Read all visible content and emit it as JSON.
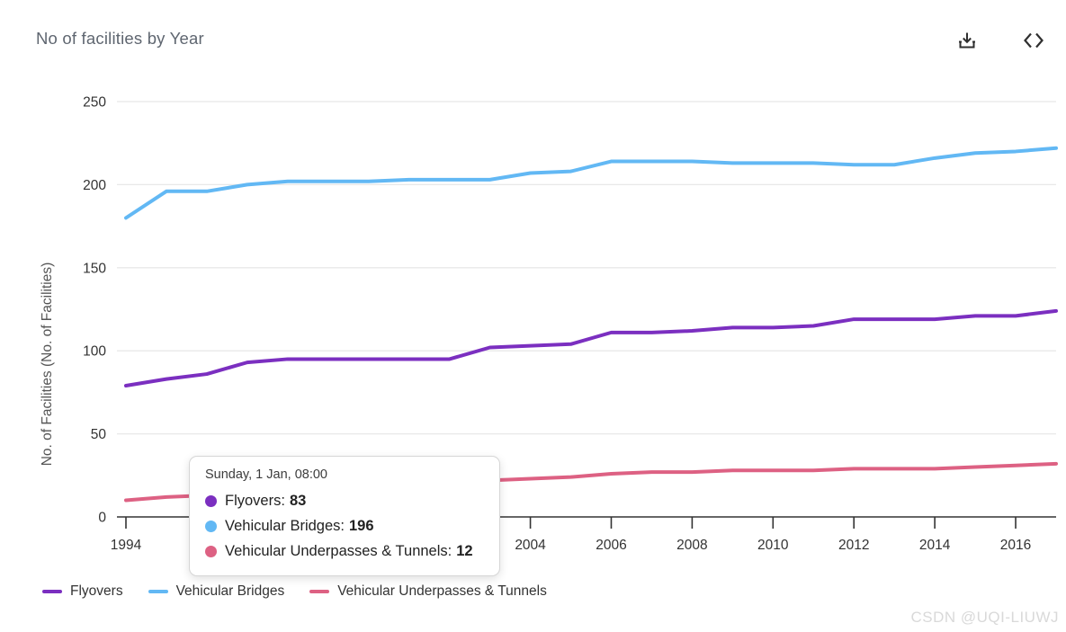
{
  "header": {
    "title": "No of facilities by Year"
  },
  "chart_data": {
    "type": "line",
    "title": "No of facilities by Year",
    "xlabel": "",
    "ylabel": "No. of Facilities (No. of Facilities)",
    "ylim": [
      0,
      250
    ],
    "yticks": [
      0,
      50,
      100,
      150,
      200,
      250
    ],
    "xticks": [
      1994,
      1996,
      1998,
      2000,
      2002,
      2004,
      2006,
      2008,
      2010,
      2012,
      2014,
      2016
    ],
    "grid": true,
    "legend_position": "bottom",
    "x": [
      1994,
      1995,
      1996,
      1997,
      1998,
      1999,
      2000,
      2001,
      2002,
      2003,
      2004,
      2005,
      2006,
      2007,
      2008,
      2009,
      2010,
      2011,
      2012,
      2013,
      2014,
      2015,
      2016,
      2017
    ],
    "series": [
      {
        "name": "Flyovers",
        "color": "#7b2fc0",
        "values": [
          79,
          83,
          86,
          93,
          95,
          95,
          95,
          95,
          95,
          102,
          103,
          104,
          111,
          111,
          112,
          114,
          114,
          115,
          119,
          119,
          119,
          121,
          121,
          124
        ]
      },
      {
        "name": "Vehicular Bridges",
        "color": "#62b8f4",
        "values": [
          180,
          196,
          196,
          200,
          202,
          202,
          202,
          203,
          203,
          203,
          207,
          208,
          214,
          214,
          214,
          213,
          213,
          213,
          212,
          212,
          216,
          219,
          220,
          222
        ]
      },
      {
        "name": "Vehicular Underpasses & Tunnels",
        "color": "#dd6183",
        "values": [
          10,
          12,
          13,
          15,
          16,
          17,
          18,
          19,
          20,
          22,
          23,
          24,
          26,
          27,
          27,
          28,
          28,
          28,
          29,
          29,
          29,
          30,
          31,
          32
        ]
      }
    ],
    "colors": {
      "axis_line": "#333333",
      "grid_line": "#e8e8e8",
      "tick_label": "#333333",
      "axis_title": "#555555"
    }
  },
  "tooltip": {
    "header": "Sunday, 1 Jan, 08:00",
    "rows": [
      {
        "label": "Flyovers",
        "value": "83"
      },
      {
        "label": "Vehicular Bridges",
        "value": "196"
      },
      {
        "label": "Vehicular Underpasses & Tunnels",
        "value": "12"
      }
    ]
  },
  "watermark": "CSDN @UQI-LIUWJ"
}
